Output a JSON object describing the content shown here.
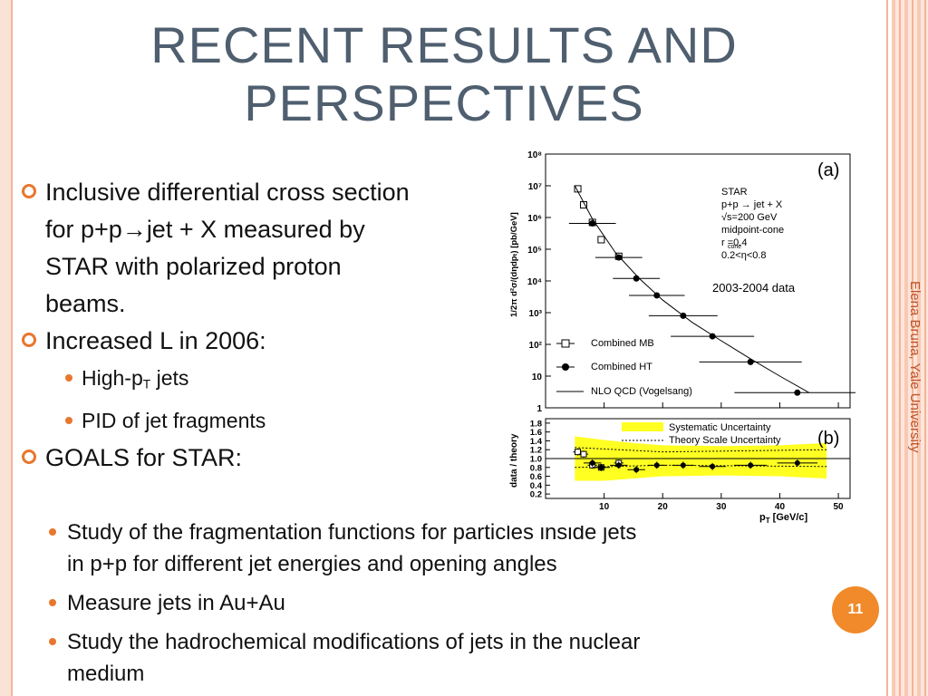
{
  "slide": {
    "title_line1": "RECENT RESULTS AND",
    "title_line2": "PERSPECTIVES",
    "side_text": "Elena Bruna, Yale University",
    "page_number": "11"
  },
  "bullets": {
    "b1_line1": "Inclusive differential cross section",
    "b1_line2_pre": "for  p+p",
    "b1_arrow": "→",
    "b1_line2_post": "jet + X measured by",
    "b1_line3": "STAR with polarized proton",
    "b1_line4": "beams.",
    "b2": "Increased L in 2006:",
    "b2_sub1_pre": "High-p",
    "b2_sub1_sub": "T",
    "b2_sub1_post": " jets",
    "b2_sub2": "PID of jet fragments",
    "b3": "GOALS for STAR:",
    "goal1_line1": "Study of the fragmentation functions for particles inside jets",
    "goal1_line2": "in p+p for different jet energies and opening angles",
    "goal2": "Measure jets in Au+Au",
    "goal3_line1": "Study the hadrochemical modifications of jets in the nuclear",
    "goal3_line2": "medium"
  },
  "figure": {
    "panel_a": "(a)",
    "panel_b": "(b)",
    "star": "STAR",
    "reaction": "p+p → jet + X",
    "energy": "√s=200  GeV",
    "algo": "midpoint-cone",
    "rcone": "r    =0.4",
    "rcone_sub": "cone",
    "eta": "0.2<η<0.8",
    "data_note": "2003-2004 data",
    "leg_mb": "Combined MB",
    "leg_ht": "Combined HT",
    "leg_nlo": "NLO QCD (Vogelsang)",
    "leg_sys": "Systematic Uncertainty",
    "leg_theory": "Theory Scale Uncertainty",
    "ylabel_top": "1/2π d²σ/(dηdpₜ) [pb/GeV]",
    "ylabel_bot": "data / theory",
    "xlabel": "p",
    "xlabel_sub": "T",
    "xlabel_unit": " [GeV/c]",
    "ytick_top": [
      "10⁸",
      "10⁷",
      "10⁶",
      "10⁵",
      "10⁴",
      "10³",
      "10²",
      "10",
      "1"
    ],
    "ytick_bot": [
      "1.8",
      "1.6",
      "1.4",
      "1.2",
      "1.0",
      "0.8",
      "0.6",
      "0.4",
      "0.2"
    ],
    "xtick": [
      "10",
      "20",
      "30",
      "40",
      "50"
    ]
  },
  "chart_data": [
    {
      "type": "scatter",
      "title": "",
      "xlabel": "pT [GeV/c]",
      "ylabel": "1/2π d²σ/(dηdpT) [pb/GeV]",
      "xlim": [
        0,
        52
      ],
      "ylim": [
        1,
        100000000
      ],
      "y_scale": "log",
      "series": [
        {
          "name": "Combined MB",
          "x": [
            5.5,
            6.5,
            8,
            9.5,
            12.5
          ],
          "y": [
            8000000,
            2500000,
            700000,
            200000,
            60000
          ]
        },
        {
          "name": "Combined HT",
          "x": [
            8,
            12.5,
            15.5,
            19,
            23.5,
            28.5,
            35,
            43
          ],
          "y": [
            650000,
            55000,
            12000,
            3500,
            800,
            180,
            28,
            3
          ]
        },
        {
          "name": "NLO QCD (Vogelsang)",
          "x": [
            5,
            8,
            12,
            16,
            20,
            25,
            30,
            35,
            40,
            45
          ],
          "y": [
            10000000,
            900000,
            75000,
            12000,
            2500,
            500,
            130,
            35,
            10,
            3
          ]
        }
      ]
    },
    {
      "type": "scatter",
      "title": "",
      "xlabel": "pT [GeV/c]",
      "ylabel": "data / theory",
      "xlim": [
        0,
        52
      ],
      "ylim": [
        0.1,
        1.9
      ],
      "series": [
        {
          "name": "Combined MB",
          "x": [
            5.5,
            6.5,
            8,
            9.5,
            12.5
          ],
          "y": [
            1.15,
            1.1,
            0.85,
            0.8,
            0.9
          ]
        },
        {
          "name": "Combined HT",
          "x": [
            8,
            9.5,
            12.5,
            15.5,
            19,
            23.5,
            28.5,
            35,
            43
          ],
          "y": [
            0.9,
            0.8,
            0.85,
            0.75,
            0.85,
            0.85,
            0.82,
            0.85,
            0.9
          ]
        }
      ]
    }
  ]
}
